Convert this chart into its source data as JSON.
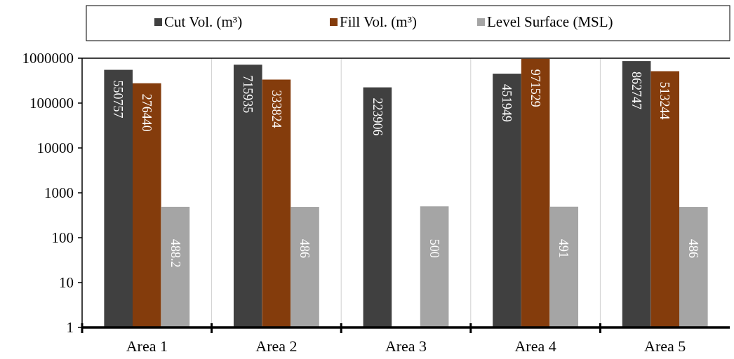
{
  "chart_data": {
    "type": "bar",
    "categories": [
      "Area 1",
      "Area 2",
      "Area 3",
      "Area 4",
      "Area 5"
    ],
    "series": [
      {
        "name": "Cut Vol. (m³)",
        "color": "#404040",
        "values": [
          550757,
          715935,
          223906,
          451949,
          862747
        ]
      },
      {
        "name": "Fill Vol. (m³)",
        "color": "#843c0c",
        "values": [
          276440,
          333824,
          null,
          971529,
          513244
        ]
      },
      {
        "name": "Level Surface (MSL)",
        "color": "#a5a5a5",
        "values": [
          488.2,
          486,
          500,
          491,
          486
        ]
      }
    ],
    "log": "y",
    "ylim": [
      1,
      1000000
    ],
    "yticks": [
      1,
      10,
      100,
      1000,
      10000,
      100000,
      1000000
    ],
    "grid": "x",
    "legend": "top",
    "data_labels": true
  }
}
